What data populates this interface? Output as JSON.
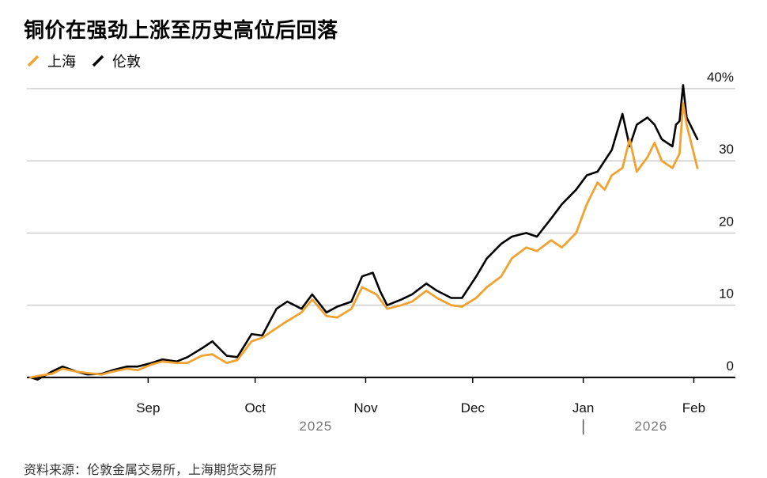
{
  "chart_data": {
    "type": "line",
    "title": "铜价在强劲上涨至历史高位后回落",
    "xlabel": "",
    "ylabel": "",
    "ylim": [
      -1,
      40
    ],
    "y_ticks": [
      0,
      10,
      20,
      30,
      40
    ],
    "y_tick_labels": [
      "0",
      "10",
      "20",
      "30",
      "40%"
    ],
    "x_range": [
      "2025-07-29",
      "2026-02-06"
    ],
    "x_ticks": [
      {
        "date": "2025-09-01",
        "label": "Sep"
      },
      {
        "date": "2025-10-01",
        "label": "Oct"
      },
      {
        "date": "2025-11-01",
        "label": "Nov"
      },
      {
        "date": "2025-12-01",
        "label": "Dec"
      },
      {
        "date": "2026-01-01",
        "label": "Jan"
      },
      {
        "date": "2026-02-01",
        "label": "Feb"
      }
    ],
    "year_labels": [
      {
        "label": "2025",
        "date": "2025-10-18"
      },
      {
        "label": "2026",
        "date": "2026-01-20"
      }
    ],
    "year_separator_date": "2026-01-01",
    "grid": true,
    "legend_position": "top-left",
    "series": [
      {
        "name": "上海",
        "color": "#f0a330",
        "points": [
          [
            "2025-07-30",
            0
          ],
          [
            "2025-08-01",
            0.2
          ],
          [
            "2025-08-05",
            0.5
          ],
          [
            "2025-08-08",
            1.2
          ],
          [
            "2025-08-12",
            0.8
          ],
          [
            "2025-08-15",
            0.6
          ],
          [
            "2025-08-19",
            0.4
          ],
          [
            "2025-08-22",
            0.8
          ],
          [
            "2025-08-26",
            1.2
          ],
          [
            "2025-08-29",
            1.0
          ],
          [
            "2025-09-02",
            1.8
          ],
          [
            "2025-09-05",
            2.2
          ],
          [
            "2025-09-09",
            2.0
          ],
          [
            "2025-09-12",
            2.0
          ],
          [
            "2025-09-16",
            3.0
          ],
          [
            "2025-09-19",
            3.2
          ],
          [
            "2025-09-23",
            2.0
          ],
          [
            "2025-09-26",
            2.4
          ],
          [
            "2025-09-30",
            5.0
          ],
          [
            "2025-10-03",
            5.5
          ],
          [
            "2025-10-09",
            7.5
          ],
          [
            "2025-10-14",
            9.0
          ],
          [
            "2025-10-17",
            10.8
          ],
          [
            "2025-10-21",
            8.5
          ],
          [
            "2025-10-24",
            8.3
          ],
          [
            "2025-10-28",
            9.5
          ],
          [
            "2025-10-31",
            12.5
          ],
          [
            "2025-11-04",
            11.5
          ],
          [
            "2025-11-07",
            9.5
          ],
          [
            "2025-11-11",
            10.0
          ],
          [
            "2025-11-14",
            10.5
          ],
          [
            "2025-11-18",
            12.0
          ],
          [
            "2025-11-21",
            11.0
          ],
          [
            "2025-11-25",
            10.0
          ],
          [
            "2025-11-28",
            9.8
          ],
          [
            "2025-12-02",
            11.0
          ],
          [
            "2025-12-05",
            12.5
          ],
          [
            "2025-12-09",
            14.0
          ],
          [
            "2025-12-12",
            16.5
          ],
          [
            "2025-12-16",
            18.0
          ],
          [
            "2025-12-19",
            17.5
          ],
          [
            "2025-12-23",
            19.0
          ],
          [
            "2025-12-26",
            18.0
          ],
          [
            "2025-12-30",
            20.0
          ],
          [
            "2026-01-02",
            24.0
          ],
          [
            "2026-01-05",
            27.0
          ],
          [
            "2026-01-07",
            26.0
          ],
          [
            "2026-01-09",
            28.0
          ],
          [
            "2026-01-12",
            29.0
          ],
          [
            "2026-01-14",
            33.0
          ],
          [
            "2026-01-16",
            28.5
          ],
          [
            "2026-01-19",
            30.5
          ],
          [
            "2026-01-21",
            32.5
          ],
          [
            "2026-01-23",
            30.0
          ],
          [
            "2026-01-26",
            29.0
          ],
          [
            "2026-01-28",
            31.0
          ],
          [
            "2026-01-29",
            38.0
          ],
          [
            "2026-01-30",
            35.0
          ],
          [
            "2026-02-02",
            29.0
          ]
        ]
      },
      {
        "name": "伦敦",
        "color": "#000000",
        "points": [
          [
            "2025-07-30",
            0
          ],
          [
            "2025-08-01",
            -0.3
          ],
          [
            "2025-08-05",
            0.8
          ],
          [
            "2025-08-08",
            1.5
          ],
          [
            "2025-08-12",
            0.8
          ],
          [
            "2025-08-15",
            0.4
          ],
          [
            "2025-08-19",
            0.5
          ],
          [
            "2025-08-22",
            1.0
          ],
          [
            "2025-08-26",
            1.5
          ],
          [
            "2025-08-29",
            1.5
          ],
          [
            "2025-09-02",
            2.0
          ],
          [
            "2025-09-05",
            2.5
          ],
          [
            "2025-09-09",
            2.2
          ],
          [
            "2025-09-12",
            2.8
          ],
          [
            "2025-09-16",
            4.0
          ],
          [
            "2025-09-19",
            5.0
          ],
          [
            "2025-09-23",
            3.0
          ],
          [
            "2025-09-26",
            2.8
          ],
          [
            "2025-09-30",
            6.0
          ],
          [
            "2025-10-03",
            5.8
          ],
          [
            "2025-10-07",
            9.5
          ],
          [
            "2025-10-10",
            10.5
          ],
          [
            "2025-10-14",
            9.5
          ],
          [
            "2025-10-17",
            11.5
          ],
          [
            "2025-10-21",
            9.0
          ],
          [
            "2025-10-24",
            9.8
          ],
          [
            "2025-10-28",
            10.5
          ],
          [
            "2025-10-31",
            14.0
          ],
          [
            "2025-11-03",
            14.5
          ],
          [
            "2025-11-05",
            12.0
          ],
          [
            "2025-11-07",
            10.0
          ],
          [
            "2025-11-11",
            10.8
          ],
          [
            "2025-11-14",
            11.5
          ],
          [
            "2025-11-18",
            13.0
          ],
          [
            "2025-11-21",
            12.0
          ],
          [
            "2025-11-25",
            11.0
          ],
          [
            "2025-11-28",
            11.0
          ],
          [
            "2025-12-02",
            14.0
          ],
          [
            "2025-12-05",
            16.5
          ],
          [
            "2025-12-09",
            18.5
          ],
          [
            "2025-12-12",
            19.5
          ],
          [
            "2025-12-16",
            20.0
          ],
          [
            "2025-12-19",
            19.5
          ],
          [
            "2025-12-23",
            22.0
          ],
          [
            "2025-12-26",
            24.0
          ],
          [
            "2025-12-30",
            26.0
          ],
          [
            "2026-01-02",
            28.0
          ],
          [
            "2026-01-05",
            28.5
          ],
          [
            "2026-01-07",
            30.0
          ],
          [
            "2026-01-09",
            31.5
          ],
          [
            "2026-01-12",
            36.5
          ],
          [
            "2026-01-14",
            32.0
          ],
          [
            "2026-01-16",
            35.0
          ],
          [
            "2026-01-19",
            36.0
          ],
          [
            "2026-01-21",
            35.0
          ],
          [
            "2026-01-23",
            33.0
          ],
          [
            "2026-01-26",
            32.0
          ],
          [
            "2026-01-27",
            35.0
          ],
          [
            "2026-01-28",
            35.5
          ],
          [
            "2026-01-29",
            40.5
          ],
          [
            "2026-01-30",
            36.0
          ],
          [
            "2026-02-02",
            33.0
          ]
        ]
      }
    ]
  },
  "source_note": "资料来源：伦敦金属交易所，上海期货交易所"
}
